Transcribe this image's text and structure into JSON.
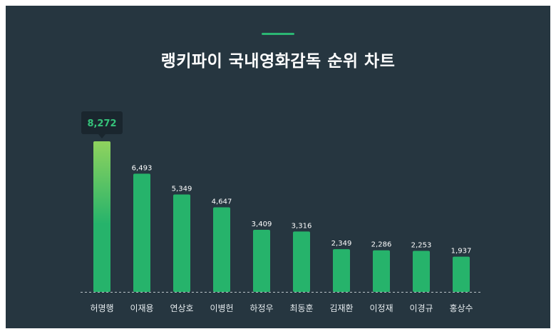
{
  "title": "랭키파이 국내영화감독 순위 차트",
  "colors": {
    "background": "#263640",
    "accent": "#2bb673",
    "bar": "#26b36b",
    "highlight_top": "#8fd35e",
    "tooltip_bg": "#1a262e",
    "tooltip_text": "#35c27a"
  },
  "chart_data": {
    "type": "bar",
    "title": "랭키파이 국내영화감독 순위 차트",
    "categories": [
      "허명행",
      "이재용",
      "연상호",
      "이병헌",
      "하정우",
      "최동훈",
      "김재환",
      "이정재",
      "이경규",
      "홍상수"
    ],
    "values": [
      8272,
      6493,
      5349,
      4647,
      3409,
      3316,
      2349,
      2286,
      2253,
      1937
    ],
    "value_labels": [
      "8,272",
      "6,493",
      "5,349",
      "4,647",
      "3,409",
      "3,316",
      "2,349",
      "2,286",
      "2,253",
      "1,937"
    ],
    "highlight_index": 0,
    "ylim": [
      0,
      8272
    ],
    "grid": false,
    "legend": "none"
  }
}
